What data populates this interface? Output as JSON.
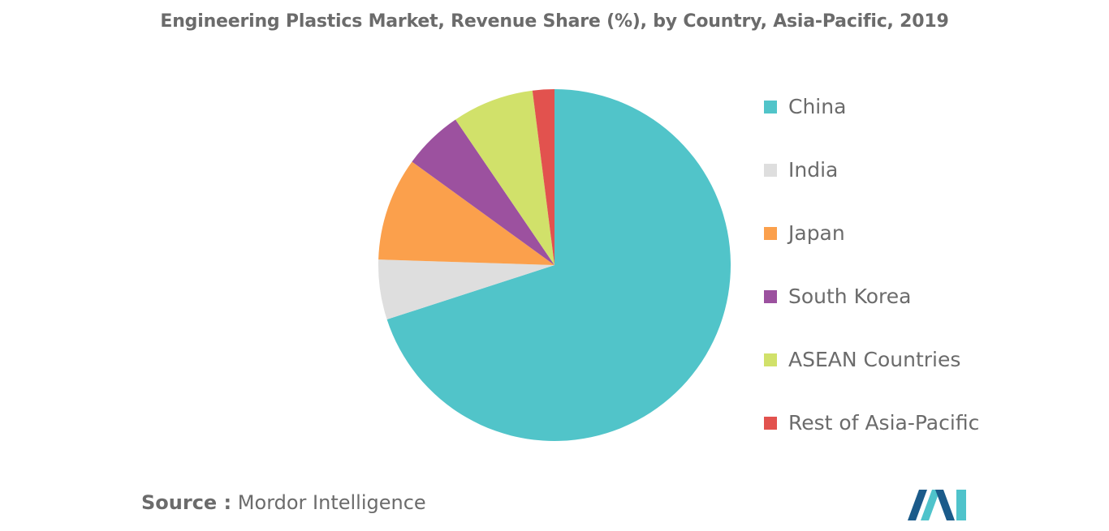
{
  "chart_data": {
    "type": "pie",
    "title": "Engineering Plastics Market, Revenue Share (%), by Country, Asia-Pacific, 2019",
    "categories": [
      "China",
      "India",
      "Japan",
      "South Korea",
      "ASEAN Countries",
      "Rest of Asia-Pacific"
    ],
    "values": [
      70,
      5.5,
      9.5,
      5.5,
      7.5,
      2
    ],
    "colors": [
      "#51c4c9",
      "#dedede",
      "#fba04c",
      "#9c519f",
      "#d1e16a",
      "#e2524e"
    ],
    "start_angle_deg": 0,
    "direction": "clockwise",
    "legend_position": "right"
  },
  "source": {
    "prefix": "Source :",
    "text": "Mordor Intelligence"
  },
  "logo": {
    "name": "mordor-intelligence-logo",
    "colors": [
      "#1b5b8a",
      "#4fc3cb"
    ]
  }
}
